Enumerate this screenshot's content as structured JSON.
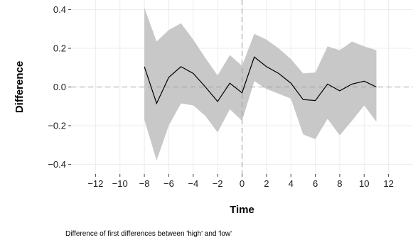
{
  "chart_data": {
    "type": "line",
    "xlabel": "Time",
    "ylabel": "Difference",
    "caption": "Difference of first differences between 'high' and 'low'",
    "xlim": [
      -14,
      14
    ],
    "ylim": [
      -0.45,
      0.45
    ],
    "xticks": [
      -12,
      -10,
      -8,
      -6,
      -4,
      -2,
      0,
      2,
      4,
      6,
      8,
      10,
      12
    ],
    "yticks": [
      -0.4,
      -0.2,
      0.0,
      0.2,
      0.4
    ],
    "ytick_labels": [
      "−0.4",
      "−0.2",
      "0.0",
      "0.2",
      "0.4"
    ],
    "xtick_labels": [
      "−12",
      "−10",
      "−8",
      "−6",
      "−4",
      "−2",
      "0",
      "2",
      "4",
      "6",
      "8",
      "10",
      "12"
    ],
    "grid": true,
    "reference_lines": {
      "hline": 0.0,
      "vline": 0
    },
    "x": [
      -8,
      -7,
      -6,
      -5,
      -4,
      -3,
      -2,
      -1,
      0,
      1,
      2,
      3,
      4,
      5,
      6,
      7,
      8,
      9,
      10,
      11
    ],
    "series": [
      {
        "values": [
          0.105,
          -0.085,
          0.05,
          0.105,
          0.07,
          0.0,
          -0.075,
          0.02,
          -0.03,
          0.155,
          0.105,
          0.07,
          0.02,
          -0.065,
          -0.07,
          0.015,
          -0.02,
          0.015,
          0.03,
          0.0
        ],
        "lower": [
          -0.17,
          -0.38,
          -0.2,
          -0.085,
          -0.095,
          -0.15,
          -0.235,
          -0.115,
          -0.175,
          0.03,
          -0.01,
          -0.035,
          -0.06,
          -0.245,
          -0.27,
          -0.165,
          -0.25,
          -0.175,
          -0.095,
          -0.18
        ],
        "upper": [
          0.41,
          0.235,
          0.295,
          0.33,
          0.245,
          0.15,
          0.06,
          0.165,
          0.11,
          0.275,
          0.245,
          0.2,
          0.145,
          0.07,
          0.075,
          0.21,
          0.19,
          0.235,
          0.21,
          0.19
        ]
      }
    ],
    "colors": {
      "line": "#000000",
      "band": "#c8c8c8",
      "grid": "#ececec",
      "reference": "#9a9a9a"
    }
  }
}
